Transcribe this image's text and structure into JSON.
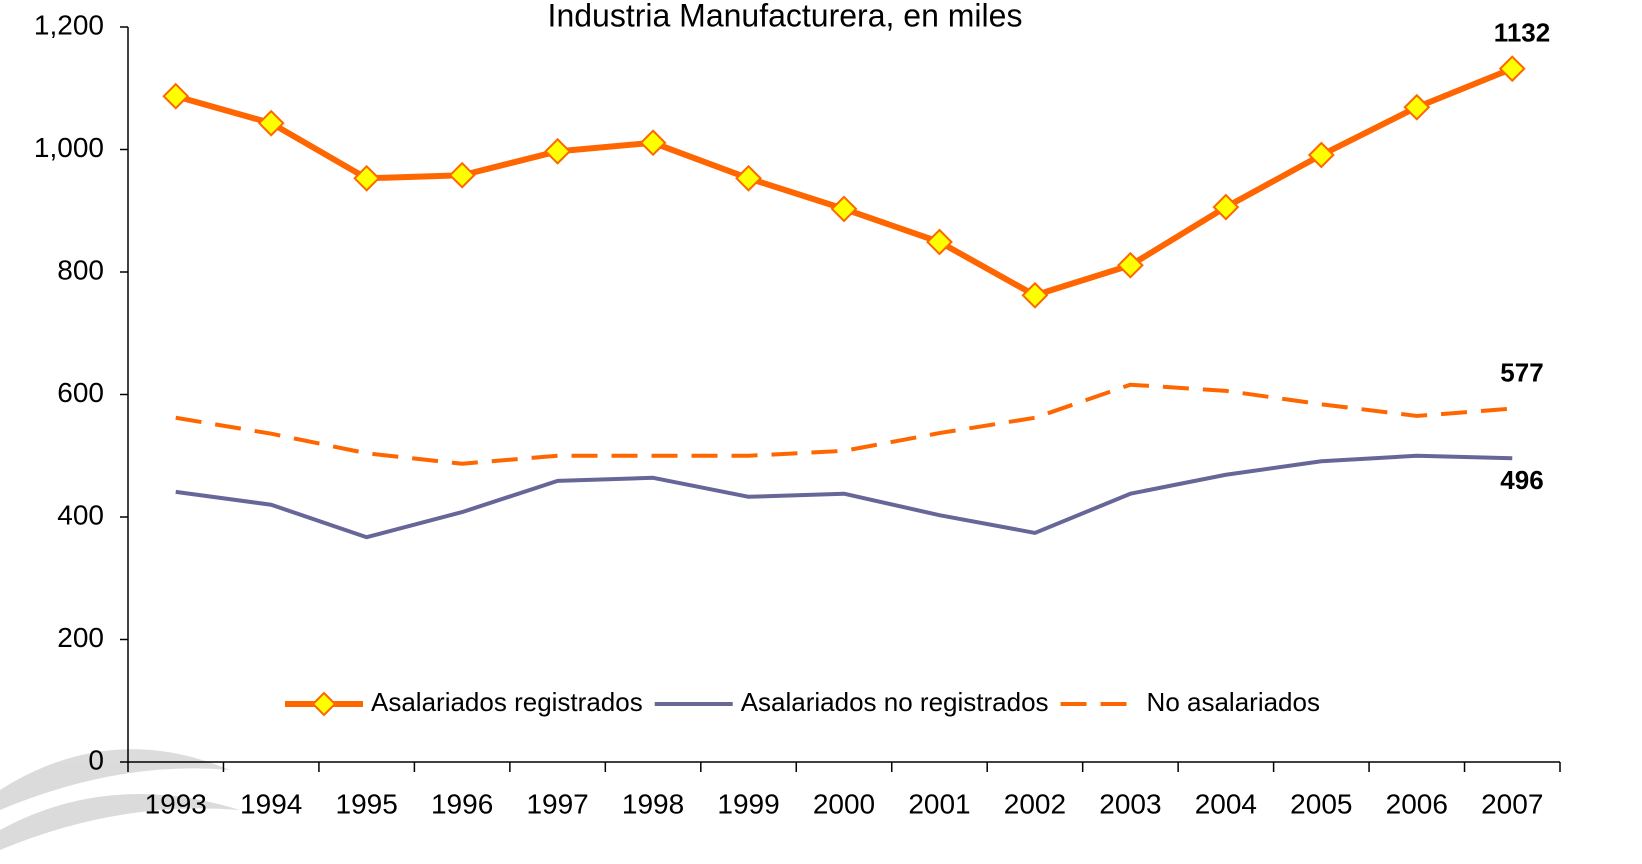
{
  "chart_data": {
    "type": "line",
    "title": "Industria Manufacturera, en miles",
    "categories": [
      "1993",
      "1994",
      "1995",
      "1996",
      "1997",
      "1998",
      "1999",
      "2000",
      "2001",
      "2002",
      "2003",
      "2004",
      "2005",
      "2006",
      "2007"
    ],
    "series": [
      {
        "name": "Asalariados registrados",
        "color": "#ff6600",
        "marker": "diamond",
        "marker_color": "#ffff00",
        "dashed": false,
        "values": [
          1087,
          1043,
          953,
          958,
          997,
          1011,
          953,
          903,
          849,
          762,
          811,
          906,
          991,
          1069,
          1132
        ]
      },
      {
        "name": "Asalariados no registrados",
        "color": "#666699",
        "dashed": false,
        "values": [
          441,
          420,
          367,
          408,
          459,
          464,
          433,
          438,
          403,
          374,
          438,
          469,
          491,
          500,
          496
        ]
      },
      {
        "name": "No asalariados",
        "color": "#ff6600",
        "dashed": true,
        "values": [
          562,
          536,
          504,
          487,
          500,
          500,
          500,
          508,
          537,
          562,
          616,
          606,
          584,
          565,
          577
        ]
      }
    ],
    "data_labels": "last",
    "ylim": [
      0,
      1200
    ],
    "yticks": [
      0,
      200,
      400,
      600,
      800,
      {
        "value": 1000,
        "label": "1,000"
      },
      {
        "value": 1200,
        "label": "1,200"
      }
    ],
    "legend": "bottom"
  }
}
